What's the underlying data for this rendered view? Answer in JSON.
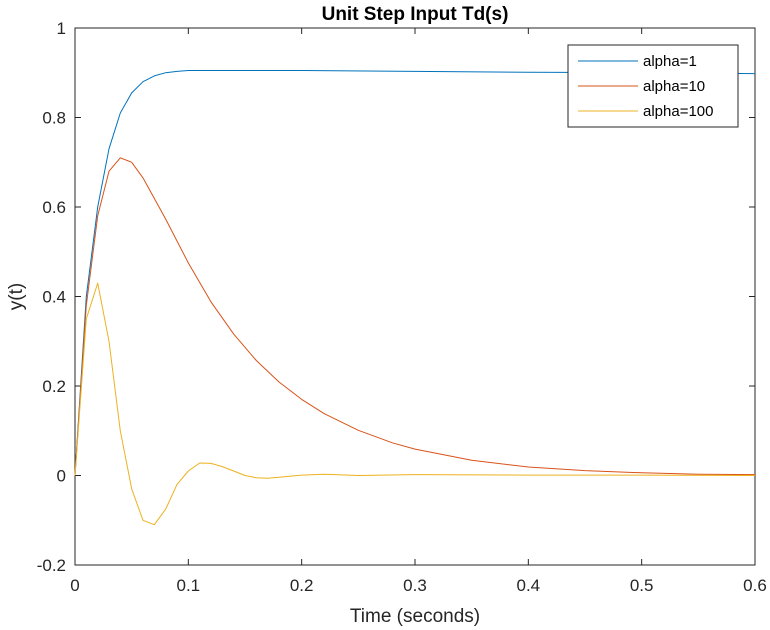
{
  "chart_data": {
    "type": "line",
    "title": "Unit Step Input Td(s)",
    "xlabel": "Time (seconds)",
    "ylabel": "y(t)",
    "xlim": [
      0,
      0.6
    ],
    "ylim": [
      -0.2,
      1
    ],
    "xticks": [
      0,
      0.1,
      0.2,
      0.3,
      0.4,
      0.5,
      0.6
    ],
    "xtick_labels": [
      "0",
      "0.1",
      "0.2",
      "0.3",
      "0.4",
      "0.5",
      "0.6"
    ],
    "yticks": [
      -0.2,
      0,
      0.2,
      0.4,
      0.6,
      0.8,
      1
    ],
    "ytick_labels": [
      "-0.2",
      "0",
      "0.2",
      "0.4",
      "0.6",
      "0.8",
      "1"
    ],
    "grid": false,
    "legend_position": "top-right",
    "series": [
      {
        "name": "alpha=1",
        "color": "#0072BD",
        "x": [
          0,
          0.01,
          0.02,
          0.03,
          0.04,
          0.05,
          0.06,
          0.07,
          0.08,
          0.09,
          0.1,
          0.11,
          0.12,
          0.15,
          0.2,
          0.3,
          0.4,
          0.5,
          0.6
        ],
        "y": [
          0,
          0.4,
          0.6,
          0.73,
          0.81,
          0.855,
          0.88,
          0.893,
          0.9,
          0.903,
          0.905,
          0.905,
          0.905,
          0.905,
          0.905,
          0.903,
          0.901,
          0.9,
          0.898
        ]
      },
      {
        "name": "alpha=10",
        "color": "#D95319",
        "x": [
          0,
          0.01,
          0.02,
          0.03,
          0.04,
          0.05,
          0.06,
          0.08,
          0.1,
          0.12,
          0.14,
          0.16,
          0.18,
          0.2,
          0.22,
          0.25,
          0.28,
          0.3,
          0.35,
          0.4,
          0.45,
          0.5,
          0.55,
          0.6
        ],
        "y": [
          0,
          0.38,
          0.58,
          0.68,
          0.71,
          0.7,
          0.665,
          0.573,
          0.475,
          0.388,
          0.316,
          0.257,
          0.209,
          0.17,
          0.138,
          0.101,
          0.073,
          0.059,
          0.034,
          0.019,
          0.011,
          0.006,
          0.003,
          0.002
        ]
      },
      {
        "name": "alpha=100",
        "color": "#EDB120",
        "x": [
          0,
          0.01,
          0.02,
          0.03,
          0.04,
          0.05,
          0.06,
          0.07,
          0.08,
          0.09,
          0.1,
          0.11,
          0.12,
          0.13,
          0.14,
          0.15,
          0.16,
          0.17,
          0.18,
          0.2,
          0.22,
          0.25,
          0.3,
          0.4,
          0.5,
          0.6
        ],
        "y": [
          0,
          0.35,
          0.43,
          0.3,
          0.1,
          -0.03,
          -0.1,
          -0.11,
          -0.075,
          -0.02,
          0.01,
          0.028,
          0.027,
          0.02,
          0.01,
          0.0,
          -0.005,
          -0.006,
          -0.004,
          0.001,
          0.003,
          0.0,
          0.002,
          0.001,
          0.001,
          0.0
        ]
      }
    ]
  }
}
